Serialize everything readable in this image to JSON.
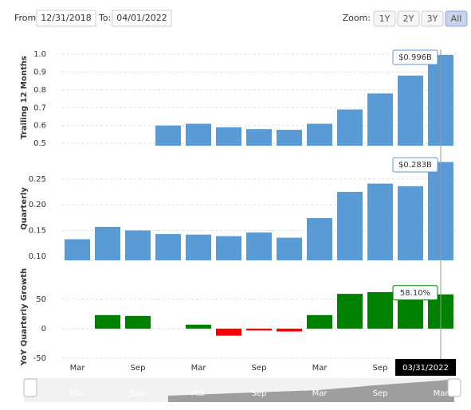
{
  "controls": {
    "from_label": "From:",
    "from_value": "12/31/2018",
    "to_label": "To:",
    "to_value": "04/01/2022",
    "zoom_label": "Zoom:",
    "zoom_buttons": [
      "1Y",
      "2Y",
      "3Y",
      "All"
    ],
    "active_button": "All"
  },
  "x_axis": {
    "categories": [
      "Mar",
      null,
      "Sep",
      null,
      "Mar",
      null,
      "Sep",
      null,
      "Mar",
      null,
      "Sep",
      null,
      null
    ],
    "crosshair_label": "03/31/2022"
  },
  "navigator": {
    "labels": [
      "Mar",
      "Sep",
      "Mar",
      "Sep",
      "Mar",
      "Sep",
      "Mar"
    ]
  },
  "chart_data": [
    {
      "type": "bar",
      "y_label": "Trailing 12 Months",
      "color": "#5b9bd5",
      "ylim": [
        0.487,
        1.027
      ],
      "yticks": [
        0.5,
        0.6,
        0.7,
        0.8,
        0.9,
        {
          "value": 1,
          "label": "1.0"
        }
      ],
      "values": [
        null,
        null,
        null,
        0.6,
        0.61,
        0.59,
        0.58,
        0.576,
        0.61,
        0.69,
        0.78,
        0.88,
        0.996
      ],
      "value_labels": [
        null,
        null,
        null,
        null,
        null,
        null,
        null,
        null,
        null,
        null,
        null,
        null,
        "$0.996B"
      ]
    },
    {
      "type": "bar",
      "y_label": "Quarterly",
      "color": "#5b9bd5",
      "ylim": [
        0.092,
        0.293
      ],
      "yticks": [
        {
          "value": 0.1,
          "label": "0.10"
        },
        0.15,
        {
          "value": 0.2,
          "label": "0.20"
        },
        0.25
      ],
      "values": [
        0.133,
        0.157,
        0.15,
        0.143,
        0.142,
        0.139,
        0.146,
        0.136,
        0.174,
        0.225,
        0.241,
        0.236,
        0.283
      ],
      "value_labels": [
        null,
        null,
        null,
        null,
        null,
        null,
        null,
        null,
        null,
        null,
        null,
        null,
        "$0.283B"
      ]
    },
    {
      "type": "bar",
      "y_label": "YoY Quarterly Growth",
      "color": "#008000",
      "negative_color": "#ff0000",
      "ylim": [
        -57,
        97
      ],
      "yticks": [
        -50,
        0,
        50
      ],
      "values": [
        null,
        23,
        21.6,
        null,
        6.8,
        -12,
        -3,
        -5,
        23,
        59,
        62,
        55,
        58.1
      ],
      "value_labels": [
        null,
        null,
        null,
        null,
        null,
        null,
        null,
        null,
        null,
        null,
        null,
        null,
        "58.10%"
      ]
    }
  ]
}
